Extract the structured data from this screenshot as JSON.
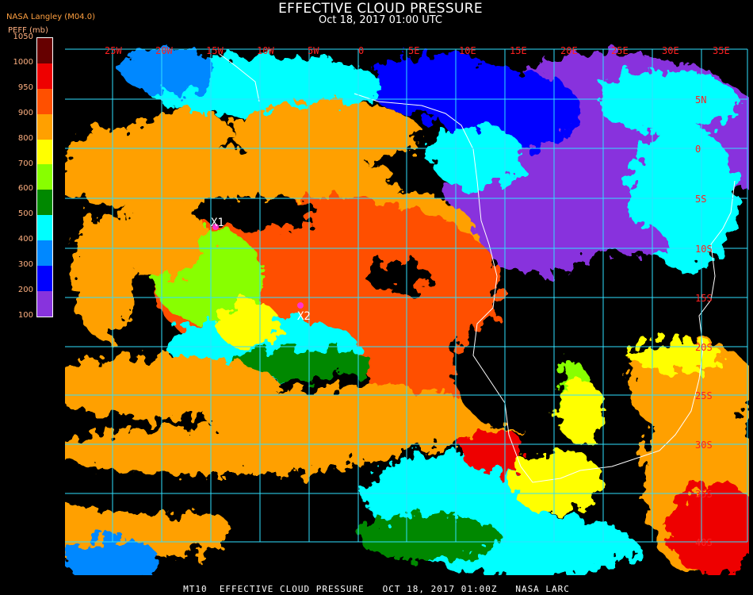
{
  "header": {
    "title": "EFFECTIVE CLOUD PRESSURE",
    "subtitle": "Oct 18, 2017 01:00 UTC",
    "organization": "NASA Langley (M04.0)"
  },
  "legend": {
    "unit": "PEFF (mb)",
    "labels": [
      "1050",
      "1000",
      "950",
      "900",
      "800",
      "700",
      "600",
      "500",
      "400",
      "300",
      "200",
      "100"
    ],
    "colors": [
      "#660000",
      "#ee0000",
      "#ff5000",
      "#ffa000",
      "#ffff00",
      "#88ff00",
      "#008800",
      "#00ffff",
      "#0088ff",
      "#0000ff",
      "#8833dd"
    ]
  },
  "map": {
    "lon_labels": [
      "25W",
      "20W",
      "15W",
      "10W",
      "5W",
      "0",
      "5E",
      "10E",
      "15E",
      "20E",
      "25E",
      "30E",
      "35E"
    ],
    "lat_labels": [
      "5N",
      "0",
      "5S",
      "10S",
      "15S",
      "20S",
      "25S",
      "30S",
      "35S",
      "40S"
    ],
    "grid_color": "#30e0ff",
    "label_color": "#ff2020",
    "markers": [
      {
        "label": "X1",
        "color": "#ff33cc"
      },
      {
        "label": "X2",
        "color": "#ff33cc"
      }
    ]
  },
  "footer": "MT10  EFFECTIVE CLOUD PRESSURE   OCT 18, 2017 01:00Z   NASA LARC"
}
